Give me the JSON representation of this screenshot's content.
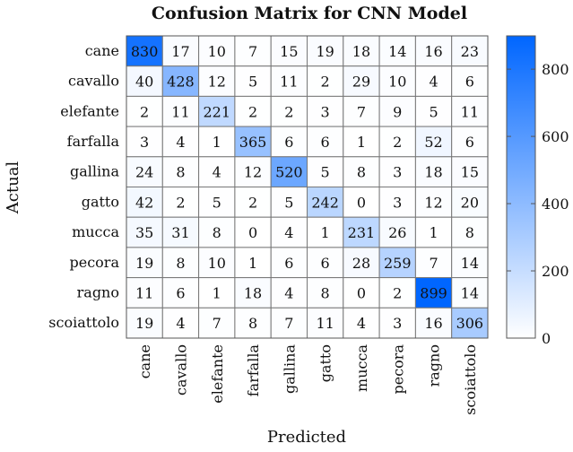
{
  "chart_data": {
    "type": "heatmap",
    "title": "Confusion Matrix for CNN Model",
    "xlabel": "Predicted",
    "ylabel": "Actual",
    "rows": [
      "cane",
      "cavallo",
      "elefante",
      "farfalla",
      "gallina",
      "gatto",
      "mucca",
      "pecora",
      "ragno",
      "scoiattolo"
    ],
    "columns": [
      "cane",
      "cavallo",
      "elefante",
      "farfalla",
      "gallina",
      "gatto",
      "mucca",
      "pecora",
      "ragno",
      "scoiattolo"
    ],
    "values": [
      [
        830,
        17,
        10,
        7,
        15,
        19,
        18,
        14,
        16,
        23
      ],
      [
        40,
        428,
        12,
        5,
        11,
        2,
        29,
        10,
        4,
        6
      ],
      [
        2,
        11,
        221,
        2,
        2,
        3,
        7,
        9,
        5,
        11
      ],
      [
        3,
        4,
        1,
        365,
        6,
        6,
        1,
        2,
        52,
        6
      ],
      [
        24,
        8,
        4,
        12,
        520,
        5,
        8,
        3,
        18,
        15
      ],
      [
        42,
        2,
        5,
        2,
        5,
        242,
        0,
        3,
        12,
        20
      ],
      [
        35,
        31,
        8,
        0,
        4,
        1,
        231,
        26,
        1,
        8
      ],
      [
        19,
        8,
        10,
        1,
        6,
        6,
        28,
        259,
        7,
        14
      ],
      [
        11,
        6,
        1,
        18,
        4,
        8,
        0,
        2,
        899,
        14
      ],
      [
        19,
        4,
        7,
        8,
        7,
        11,
        4,
        3,
        16,
        306
      ]
    ],
    "colorbar": {
      "min": 0,
      "max": 899,
      "ticks": [
        0,
        200,
        400,
        600,
        800
      ],
      "color_low": "#ffffff",
      "color_high": "#0066ff"
    },
    "grid": true
  }
}
